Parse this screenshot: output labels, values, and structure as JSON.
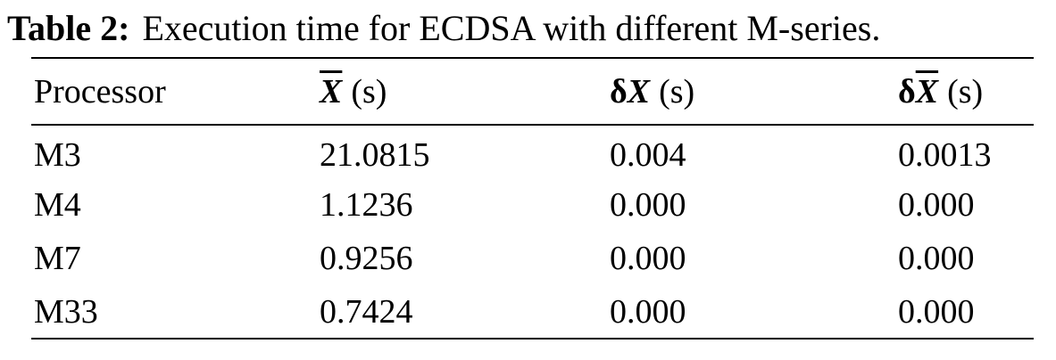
{
  "caption": {
    "label": "Table 2:",
    "text": "Execution time for ECDSA with different M-series."
  },
  "table": {
    "header": [
      {
        "text": "Processor"
      },
      {
        "symbol": "X",
        "overline": true,
        "unit": "(s)"
      },
      {
        "prefix": "δ",
        "symbol": "X",
        "overline": false,
        "unit": "(s)"
      },
      {
        "prefix": "δ",
        "symbol": "X",
        "overline": true,
        "unit": "(s)"
      }
    ],
    "rows": [
      [
        "M3",
        "21.0815",
        "0.004",
        "0.0013"
      ],
      [
        "M4",
        "1.1236",
        "0.000",
        "0.000"
      ],
      [
        "M7",
        "0.9256",
        "0.000",
        "0.000"
      ],
      [
        "M33",
        "0.7424",
        "0.000",
        "0.000"
      ]
    ]
  }
}
